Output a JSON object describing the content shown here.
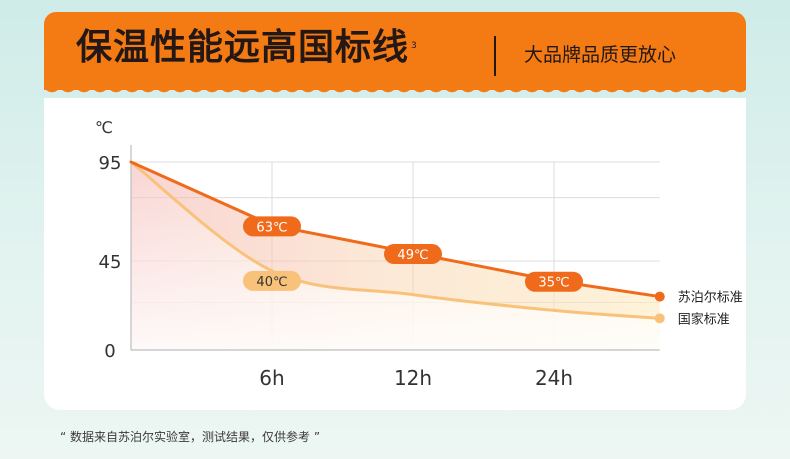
{
  "header": {
    "headline": "保温性能远高国标线",
    "footnote_mark": "3",
    "tagline": "大品牌品质更放心"
  },
  "colors": {
    "brand_orange": "#f47b14",
    "series_primary": "#f06a1c",
    "series_secondary": "#f9c27a",
    "text_dark": "#231815"
  },
  "chart_data": {
    "type": "line",
    "ylabel": "℃",
    "yticks": [
      95,
      45,
      0
    ],
    "ylim": [
      0,
      100
    ],
    "xtick_labels": [
      "6h",
      "12h",
      "24h"
    ],
    "series": [
      {
        "name": "苏泊尔标准",
        "points": [
          {
            "x": 0,
            "y": 95
          },
          {
            "x": 1,
            "y": 63,
            "label": "63℃"
          },
          {
            "x": 2,
            "y": 49,
            "label": "49℃"
          },
          {
            "x": 3,
            "y": 35,
            "label": "35℃"
          },
          {
            "x": 3.75,
            "y": 27
          }
        ]
      },
      {
        "name": "国家标准",
        "points": [
          {
            "x": 0,
            "y": 95
          },
          {
            "x": 1,
            "y": 40,
            "label": "40℃"
          },
          {
            "x": 2,
            "y": 28
          },
          {
            "x": 3,
            "y": 20
          },
          {
            "x": 3.75,
            "y": 16
          }
        ]
      }
    ],
    "grid": true
  },
  "footnote": "“ 数据来自苏泊尔实验室，测试结果，仅供参考 ”"
}
